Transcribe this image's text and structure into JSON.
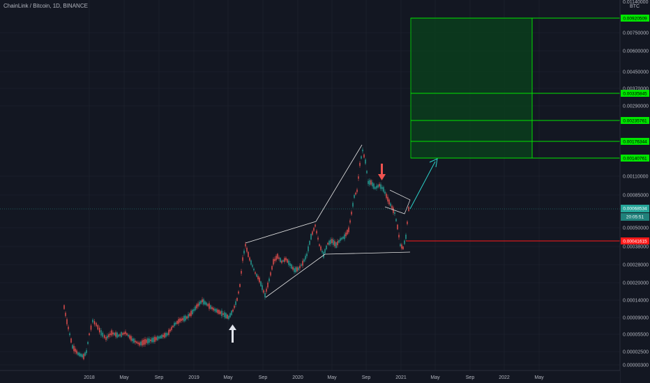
{
  "symbol": {
    "title": "ChainLink / Bitcoin, 1D, BINANCE"
  },
  "price_axis": {
    "unit": "BTC",
    "ticks": [
      "0.01140000",
      "0.00750000",
      "0.00600000",
      "0.00450000",
      "0.00370000",
      "0.00290000",
      "0.00110000",
      "0.00085000",
      "0.00050000",
      "0.00038000",
      "0.00028000",
      "0.00020000",
      "0.00014000",
      "0.00009000",
      "0.00005500",
      "0.00002500",
      "0.00000300"
    ]
  },
  "time_axis": {
    "ticks": [
      "2018",
      "May",
      "Sep",
      "2019",
      "May",
      "Sep",
      "2020",
      "May",
      "Sep",
      "2021",
      "May",
      "Sep",
      "2022",
      "May"
    ]
  },
  "levels": [
    {
      "label": "0.00920509",
      "color": "#00e600"
    },
    {
      "label": "0.00335845",
      "color": "#00e600"
    },
    {
      "label": "0.00235761",
      "color": "#00e600"
    },
    {
      "label": "0.00176344",
      "color": "#00e600"
    },
    {
      "label": "0.00140761",
      "color": "#00e600"
    }
  ],
  "current_price": {
    "label": "0.00068534",
    "countdown": "20:05:51",
    "color": "#26a69a"
  },
  "support": {
    "label": "0.00041615",
    "color": "#ff1a1a"
  },
  "colors": {
    "up": "#26a69a",
    "down": "#ef5350",
    "target_zone": "#00e600",
    "pattern": "#e6e6e6",
    "projection": "#2bd1c9",
    "arrow_up": "#e0e3eb",
    "arrow_down": "#ef5350"
  },
  "chart_data": {
    "type": "candlestick",
    "title": "ChainLink / Bitcoin, 1D, BINANCE",
    "ylabel": "BTC",
    "scale": "log",
    "x_range": [
      "2017-09",
      "2022-07"
    ],
    "price_path": [
      {
        "date": "2017-09",
        "close": 9e-05
      },
      {
        "date": "2017-10",
        "close": 3.5e-06
      },
      {
        "date": "2017-11",
        "close": 2.5e-06
      },
      {
        "date": "2018-01",
        "close": 9e-06
      },
      {
        "date": "2018-03",
        "close": 5.5e-06
      },
      {
        "date": "2018-07",
        "close": 5.5e-06
      },
      {
        "date": "2018-09",
        "close": 3e-06
      },
      {
        "date": "2018-12",
        "close": 1.2e-05
      },
      {
        "date": "2019-02",
        "close": 1.1e-05
      },
      {
        "date": "2019-05",
        "close": 8e-06
      },
      {
        "date": "2019-06",
        "close": 0.00038
      },
      {
        "date": "2019-09",
        "close": 0.00014
      },
      {
        "date": "2019-10",
        "close": 0.0003
      },
      {
        "date": "2019-12",
        "close": 0.00025
      },
      {
        "date": "2020-02",
        "close": 0.0006
      },
      {
        "date": "2020-03",
        "close": 0.00035
      },
      {
        "date": "2020-06",
        "close": 0.00045
      },
      {
        "date": "2020-08",
        "close": 0.0015
      },
      {
        "date": "2020-09",
        "close": 0.001
      },
      {
        "date": "2020-11",
        "close": 0.00085
      },
      {
        "date": "2020-12",
        "close": 0.0004
      },
      {
        "date": "2021-01",
        "close": 0.00068534
      }
    ]
  }
}
